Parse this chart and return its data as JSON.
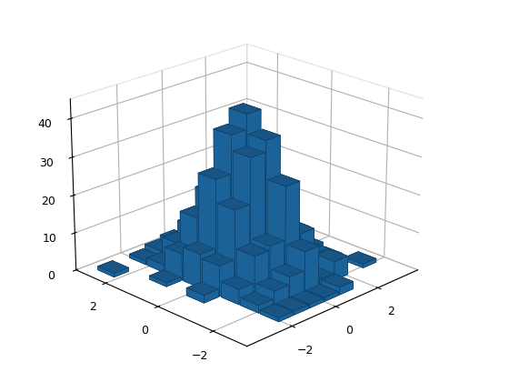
{
  "seed": 42,
  "n_samples": 500,
  "n_bins": 10,
  "x_range": [
    -3.5,
    3.5
  ],
  "y_range": [
    -3.5,
    3.5
  ],
  "bar_color": "#1f6fad",
  "bar_edge_color": "#0d3d63",
  "bar_alpha": 1.0,
  "zlim": [
    0,
    45
  ],
  "zticks": [
    0,
    10,
    20,
    30,
    40
  ],
  "elev": 22,
  "azim": -135,
  "figsize": [
    5.6,
    4.2
  ],
  "dpi": 100,
  "background_color": "#ffffff"
}
